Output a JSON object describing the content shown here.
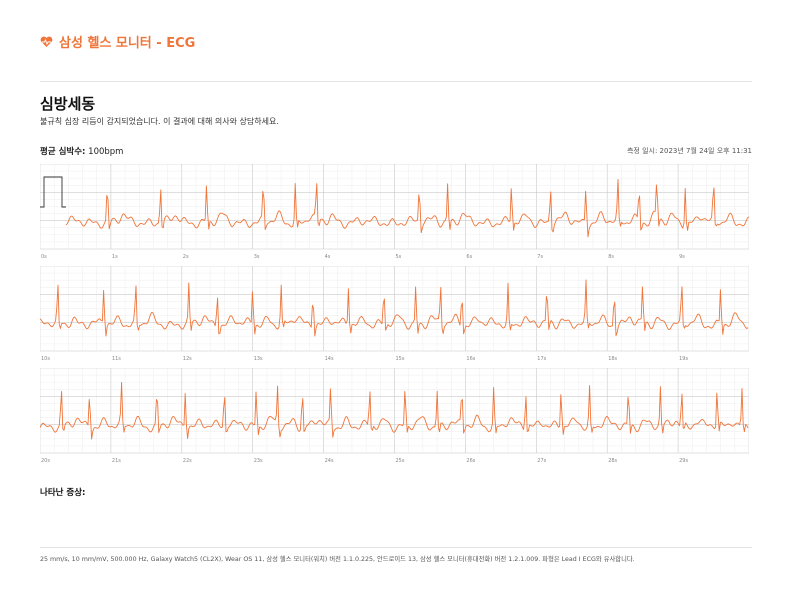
{
  "header": {
    "title": "삼성 헬스 모니터 - ECG",
    "logo_color": "#f0753a"
  },
  "result": {
    "title": "심방세동",
    "description": "불규칙 심장 리듬이 감지되었습니다. 이 결과에 대해 의사와 상담하세요."
  },
  "heart_rate": {
    "label": "평균 심박수:",
    "value": "100bpm"
  },
  "measured_at": "측정 일시: 2023년 7월 24일 오후 11:31",
  "symptoms_label": "나타난 증상:",
  "footer": "25 mm/s, 10 mm/mV, 500.000 Hz, Galaxy Watch5 (CL2X), Wear OS 11, 삼성 헬스 모니터(워치) 버전 1.1.0.225, 안드로이드 13, 삼성 헬스 모니터(휴대전화) 버전 1.2.1.009. 파형은 Lead I ECG와 유사합니다.",
  "chart_data": {
    "type": "line",
    "trace_color": "#f0753a",
    "grid": true,
    "paper_speed": "25 mm/s",
    "gain": "10 mm/mV",
    "strips": [
      {
        "tick_labels": [
          "0s",
          "1s",
          "2s",
          "3s",
          "4s",
          "5s",
          "6s",
          "7s",
          "8s",
          "9s"
        ],
        "calibration_pulse": true,
        "beat_times_s": [
          0.95,
          1.7,
          2.35,
          3.15,
          3.6,
          3.9,
          5.35,
          5.75,
          6.65,
          7.2,
          7.7,
          8.15,
          8.45,
          8.7,
          9.1,
          9.5
        ]
      },
      {
        "tick_labels": [
          "10s",
          "11s",
          "12s",
          "13s",
          "14s",
          "15s",
          "16s",
          "17s",
          "18s",
          "19s"
        ],
        "calibration_pulse": false,
        "beat_times_s": [
          10.25,
          10.9,
          11.35,
          12.1,
          12.5,
          13.0,
          13.4,
          13.85,
          14.35,
          14.85,
          15.3,
          15.65,
          15.95,
          16.6,
          17.15,
          17.7,
          18.1,
          18.5,
          19.05,
          19.6
        ]
      },
      {
        "tick_labels": [
          "20s",
          "21s",
          "22s",
          "23s",
          "24s",
          "25s",
          "26s",
          "27s",
          "28s",
          "29s"
        ],
        "calibration_pulse": false,
        "beat_times_s": [
          20.3,
          20.7,
          21.15,
          21.65,
          22.05,
          22.6,
          23.05,
          23.35,
          23.7,
          24.1,
          24.65,
          25.15,
          25.6,
          25.95,
          26.4,
          26.85,
          27.35,
          27.75,
          28.3,
          28.75,
          29.05,
          29.55,
          29.9
        ]
      }
    ]
  }
}
